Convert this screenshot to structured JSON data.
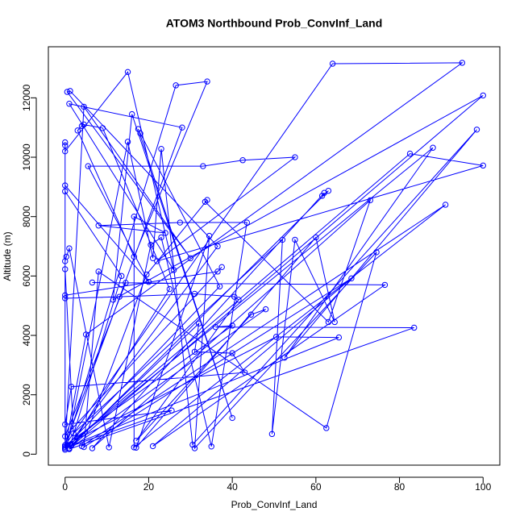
{
  "chart_data": {
    "type": "line",
    "title": "ATOM3 Northbound Prob_ConvInf_Land",
    "x_label": "Prob_ConvInf_Land",
    "y_label": "Altitude (m)",
    "color": "#0000ff",
    "markers": true,
    "xlim": [
      -4,
      104
    ],
    "ylim": [
      -370,
      13720
    ],
    "xticks": [
      0,
      20,
      40,
      60,
      80,
      100
    ],
    "yticks": [
      0,
      2000,
      4000,
      6000,
      8000,
      10000,
      12000
    ],
    "x": [
      0,
      0,
      0,
      0,
      15,
      26,
      1,
      28,
      0,
      64,
      95,
      5,
      0,
      4.5,
      30,
      0.5,
      1.2,
      36.5,
      0,
      26.5,
      34,
      16.5,
      3,
      4,
      4.5,
      9,
      25,
      1,
      100,
      11.5,
      16,
      40,
      17.5,
      18,
      37,
      0.5,
      15,
      21,
      23,
      30.5,
      98.5,
      52.5,
      88,
      0,
      82.5,
      100,
      22,
      55,
      42.5,
      33,
      5.5,
      20,
      0,
      0,
      13.5,
      1,
      63,
      61.5,
      62,
      6.5,
      73,
      63,
      33.5,
      34,
      19.5,
      4,
      91,
      16.5,
      16.5,
      24,
      8,
      27.5,
      43.5,
      35,
      23,
      20.5,
      10.5,
      1,
      0.3,
      0,
      0,
      2,
      52,
      49.5,
      55,
      64.5,
      60,
      17,
      34.5,
      31,
      74.5,
      62.5,
      8,
      4.5,
      68.5,
      21,
      76.5,
      6.5,
      14.5,
      0,
      37.5,
      36.5,
      0,
      0,
      13,
      31,
      40.5,
      41.5,
      17,
      44.5,
      48,
      1,
      83.5,
      36,
      40,
      0,
      50.5,
      65.5,
      1.5,
      32,
      31,
      40,
      43,
      1.5,
      0,
      25.5,
      0
    ],
    "values": [
      250,
      10500,
      10400,
      10200,
      12870,
      6200,
      11800,
      11000,
      300,
      13150,
      13180,
      4030,
      200,
      11700,
      6600,
      12200,
      12230,
      7000,
      150,
      12420,
      12550,
      6650,
      10900,
      11050,
      11100,
      10980,
      5560,
      200,
      12080,
      5200,
      11450,
      1220,
      10950,
      10800,
      5650,
      300,
      10520,
      6600,
      10280,
      320,
      10930,
      3250,
      10320,
      200,
      10120,
      9720,
      6500,
      10000,
      9900,
      9700,
      9700,
      5800,
      9050,
      8850,
      6000,
      200,
      8870,
      8700,
      8800,
      200,
      8550,
      4450,
      8500,
      8560,
      6050,
      270,
      8400,
      230,
      8000,
      7450,
      7700,
      7800,
      7800,
      260,
      7300,
      7050,
      230,
      6930,
      6650,
      6500,
      6230,
      700,
      7220,
      680,
      7220,
      4450,
      7300,
      220,
      7350,
      200,
      6800,
      880,
      6150,
      240,
      5920,
      270,
      5700,
      5780,
      5770,
      600,
      6300,
      6150,
      5350,
      5250,
      5300,
      5400,
      5300,
      5200,
      450,
      4700,
      4880,
      170,
      4260,
      4280,
      4330,
      300,
      3950,
      3930,
      300,
      4400,
      3450,
      3400,
      2750,
      2270,
      1000,
      1470,
      200
    ]
  }
}
